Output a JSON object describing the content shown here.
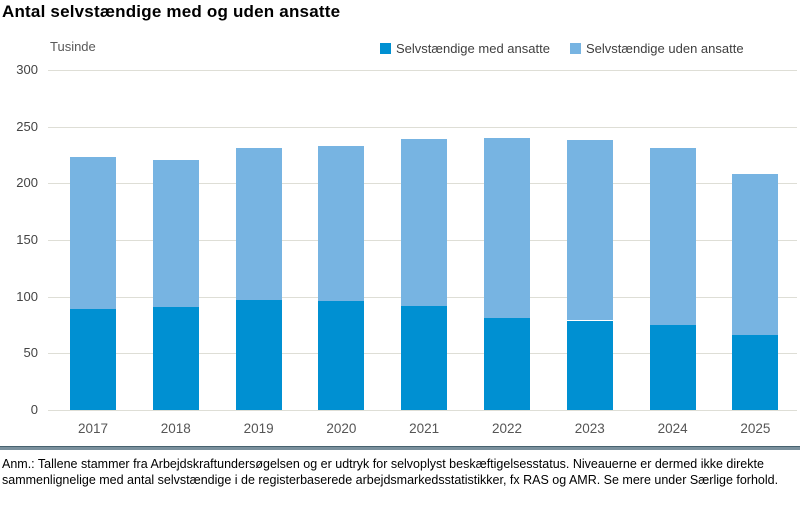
{
  "title": "Antal selvstændige med og uden ansatte",
  "y_axis_unit": "Tusinde",
  "legend": [
    {
      "label": "Selvstændige med ansatte",
      "color": "#0090d2"
    },
    {
      "label": "Selvstændige uden ansatte",
      "color": "#77b4e2"
    }
  ],
  "note": "Anm.: Tallene stammer fra Arbejdskraftundersøgelsen og er udtryk for selvoplyst beskæftigelsesstatus. Niveauerne er dermed ikke direkte sammenlignelige med antal selvstændige i de registerbaserede arbejdsmarkedsstatistikker, fx RAS og AMR. Se mere under Særlige forhold.",
  "chart_data": {
    "type": "bar",
    "stacked": true,
    "title": "Antal selvstændige med og uden ansatte",
    "ylabel": "Tusinde",
    "ylim": [
      0,
      300
    ],
    "yticks": [
      0,
      50,
      100,
      150,
      200,
      250,
      300
    ],
    "grid": true,
    "legend_position": "top-right",
    "categories": [
      "2017",
      "2018",
      "2019",
      "2020",
      "2021",
      "2022",
      "2023",
      "2024",
      "2025"
    ],
    "series": [
      {
        "name": "Selvstændige med ansatte",
        "color": "#0090d2",
        "values": [
          89,
          91,
          97,
          96,
          92,
          81,
          79,
          75,
          66
        ]
      },
      {
        "name": "Selvstændige uden ansatte",
        "color": "#77b4e2",
        "values": [
          134,
          130,
          134,
          137,
          147,
          159,
          159,
          156,
          142
        ]
      }
    ],
    "totals": [
      223,
      221,
      231,
      233,
      239,
      240,
      238,
      231,
      208
    ]
  }
}
